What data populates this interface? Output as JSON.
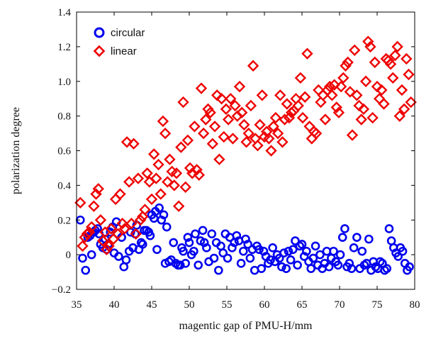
{
  "chart_data": {
    "type": "scatter",
    "title": "",
    "xlabel": "magentic gap of PMU-H/mm",
    "ylabel": "polarization degree",
    "xlim": [
      35,
      80
    ],
    "ylim": [
      -0.2,
      1.4
    ],
    "xticks": [
      35,
      40,
      45,
      50,
      55,
      60,
      65,
      70,
      75,
      80
    ],
    "xtick_labels": [
      "35",
      "40",
      "45",
      "50",
      "55",
      "60",
      "65",
      "70",
      "75",
      "80"
    ],
    "yticks": [
      -0.2,
      0,
      0.2,
      0.4,
      0.6,
      0.8,
      1.0,
      1.2,
      1.4
    ],
    "ytick_labels": [
      "−0.2",
      "0",
      "0.2",
      "0.4",
      "0.6",
      "0.8",
      "1.0",
      "1.2",
      "1.4"
    ],
    "grid": false,
    "legend": {
      "placement": "top-left",
      "entries": [
        "circular",
        "linear"
      ]
    },
    "series": [
      {
        "name": "circular",
        "marker": "circle",
        "color": "#0000ee",
        "points": [
          [
            35.5,
            0.2
          ],
          [
            35.8,
            -0.02
          ],
          [
            36.2,
            -0.09
          ],
          [
            36.5,
            0.1
          ],
          [
            36.8,
            0.11
          ],
          [
            37.0,
            0.0
          ],
          [
            37.3,
            0.13
          ],
          [
            37.5,
            0.14
          ],
          [
            37.8,
            0.15
          ],
          [
            38.0,
            0.12
          ],
          [
            38.2,
            0.06
          ],
          [
            38.5,
            0.04
          ],
          [
            38.8,
            0.09
          ],
          [
            39.0,
            0.03
          ],
          [
            39.2,
            0.06
          ],
          [
            39.5,
            0.13
          ],
          [
            39.8,
            0.16
          ],
          [
            40.0,
            0.01
          ],
          [
            40.3,
            0.19
          ],
          [
            40.6,
            -0.01
          ],
          [
            41.0,
            0.1
          ],
          [
            41.3,
            -0.07
          ],
          [
            41.6,
            -0.03
          ],
          [
            42.0,
            0.02
          ],
          [
            42.2,
            0.13
          ],
          [
            42.5,
            0.04
          ],
          [
            42.8,
            0.12
          ],
          [
            43.0,
            0.17
          ],
          [
            43.3,
            0.03
          ],
          [
            43.6,
            0.07
          ],
          [
            43.8,
            0.06
          ],
          [
            44.0,
            0.14
          ],
          [
            44.3,
            0.14
          ],
          [
            44.6,
            0.13
          ],
          [
            44.8,
            0.11
          ],
          [
            45.0,
            0.23
          ],
          [
            45.3,
            0.21
          ],
          [
            45.5,
            0.25
          ],
          [
            45.7,
            0.03
          ],
          [
            46.0,
            0.27
          ],
          [
            46.3,
            0.2
          ],
          [
            46.6,
            0.23
          ],
          [
            46.8,
            -0.05
          ],
          [
            47.0,
            0.16
          ],
          [
            47.3,
            -0.04
          ],
          [
            47.6,
            -0.03
          ],
          [
            47.9,
            0.07
          ],
          [
            48.2,
            -0.05
          ],
          [
            48.5,
            -0.06
          ],
          [
            48.8,
            -0.06
          ],
          [
            49.0,
            0.04
          ],
          [
            49.2,
            0.02
          ],
          [
            49.5,
            -0.05
          ],
          [
            49.8,
            0.1
          ],
          [
            50.0,
            0.07
          ],
          [
            50.3,
            0.0
          ],
          [
            50.6,
            0.02
          ],
          [
            50.8,
            0.12
          ],
          [
            51.2,
            -0.06
          ],
          [
            51.5,
            0.08
          ],
          [
            51.8,
            0.14
          ],
          [
            52.0,
            0.07
          ],
          [
            52.3,
            0.04
          ],
          [
            52.6,
            -0.04
          ],
          [
            53.0,
            0.12
          ],
          [
            53.3,
            -0.02
          ],
          [
            53.6,
            0.07
          ],
          [
            53.9,
            -0.09
          ],
          [
            54.2,
            0.05
          ],
          [
            54.5,
            0.01
          ],
          [
            54.8,
            0.12
          ],
          [
            55.1,
            -0.02
          ],
          [
            55.4,
            0.1
          ],
          [
            55.7,
            0.04
          ],
          [
            56.0,
            0.07
          ],
          [
            56.3,
            0.11
          ],
          [
            56.6,
            0.08
          ],
          [
            56.9,
            -0.05
          ],
          [
            57.2,
            0.02
          ],
          [
            57.5,
            0.09
          ],
          [
            57.8,
            0.06
          ],
          [
            58.1,
            -0.02
          ],
          [
            58.4,
            0.03
          ],
          [
            58.7,
            -0.09
          ],
          [
            59.0,
            0.05
          ],
          [
            59.3,
            0.03
          ],
          [
            59.6,
            -0.08
          ],
          [
            59.9,
            0.02
          ],
          [
            60.2,
            -0.01
          ],
          [
            60.5,
            -0.05
          ],
          [
            60.8,
            -0.03
          ],
          [
            61.1,
            0.04
          ],
          [
            61.4,
            -0.04
          ],
          [
            61.7,
            0.0
          ],
          [
            62.0,
            -0.02
          ],
          [
            62.3,
            -0.07
          ],
          [
            62.6,
            0.01
          ],
          [
            62.9,
            -0.08
          ],
          [
            63.2,
            0.02
          ],
          [
            63.5,
            -0.03
          ],
          [
            63.8,
            0.03
          ],
          [
            64.1,
            0.08
          ],
          [
            64.4,
            -0.06
          ],
          [
            64.7,
            0.05
          ],
          [
            65.0,
            0.06
          ],
          [
            65.3,
            -0.01
          ],
          [
            65.6,
            0.02
          ],
          [
            65.9,
            -0.04
          ],
          [
            66.2,
            -0.08
          ],
          [
            66.5,
            -0.02
          ],
          [
            66.8,
            0.05
          ],
          [
            67.1,
            -0.06
          ],
          [
            67.4,
            0.0
          ],
          [
            67.7,
            -0.08
          ],
          [
            68.0,
            -0.05
          ],
          [
            68.3,
            0.02
          ],
          [
            68.6,
            -0.07
          ],
          [
            68.9,
            -0.02
          ],
          [
            69.2,
            0.02
          ],
          [
            69.5,
            -0.04
          ],
          [
            69.8,
            -0.06
          ],
          [
            70.1,
            0.0
          ],
          [
            70.4,
            0.1
          ],
          [
            70.7,
            0.15
          ],
          [
            71.0,
            -0.07
          ],
          [
            71.3,
            -0.05
          ],
          [
            71.6,
            -0.08
          ],
          [
            71.9,
            0.04
          ],
          [
            72.3,
            0.1
          ],
          [
            72.7,
            -0.08
          ],
          [
            73.0,
            0.02
          ],
          [
            73.3,
            -0.06
          ],
          [
            73.6,
            -0.05
          ],
          [
            73.9,
            0.09
          ],
          [
            74.2,
            -0.09
          ],
          [
            74.5,
            -0.04
          ],
          [
            74.8,
            -0.07
          ],
          [
            75.1,
            -0.08
          ],
          [
            75.4,
            -0.04
          ],
          [
            75.7,
            -0.05
          ],
          [
            76.0,
            -0.09
          ],
          [
            76.3,
            -0.08
          ],
          [
            76.6,
            0.15
          ],
          [
            76.9,
            0.08
          ],
          [
            77.2,
            0.04
          ],
          [
            77.5,
            0.01
          ],
          [
            77.8,
            -0.01
          ],
          [
            78.1,
            0.04
          ],
          [
            78.4,
            0.02
          ],
          [
            78.7,
            -0.05
          ],
          [
            79.0,
            -0.09
          ],
          [
            79.3,
            -0.07
          ]
        ]
      },
      {
        "name": "linear",
        "marker": "diamond",
        "color": "#ee0000",
        "points": [
          [
            35.5,
            0.3
          ],
          [
            35.8,
            0.05
          ],
          [
            36.1,
            0.1
          ],
          [
            36.4,
            0.12
          ],
          [
            36.7,
            0.13
          ],
          [
            37.0,
            0.16
          ],
          [
            37.3,
            0.28
          ],
          [
            37.6,
            0.35
          ],
          [
            37.9,
            0.38
          ],
          [
            38.2,
            0.2
          ],
          [
            38.5,
            0.08
          ],
          [
            38.8,
            0.13
          ],
          [
            39.0,
            0.03
          ],
          [
            39.3,
            0.05
          ],
          [
            39.6,
            0.15
          ],
          [
            39.9,
            0.09
          ],
          [
            40.2,
            0.32
          ],
          [
            40.5,
            0.12
          ],
          [
            40.8,
            0.35
          ],
          [
            41.1,
            0.18
          ],
          [
            41.4,
            0.15
          ],
          [
            41.7,
            0.65
          ],
          [
            42.0,
            0.42
          ],
          [
            42.3,
            0.18
          ],
          [
            42.6,
            0.64
          ],
          [
            42.9,
            0.12
          ],
          [
            43.2,
            0.44
          ],
          [
            43.5,
            0.2
          ],
          [
            43.8,
            0.22
          ],
          [
            44.1,
            0.26
          ],
          [
            44.4,
            0.47
          ],
          [
            44.7,
            0.42
          ],
          [
            45.0,
            0.32
          ],
          [
            45.3,
            0.58
          ],
          [
            45.6,
            0.44
          ],
          [
            45.9,
            0.52
          ],
          [
            46.2,
            0.35
          ],
          [
            46.5,
            0.77
          ],
          [
            46.8,
            0.7
          ],
          [
            47.1,
            0.42
          ],
          [
            47.4,
            0.55
          ],
          [
            47.7,
            0.48
          ],
          [
            48.0,
            0.4
          ],
          [
            48.3,
            0.47
          ],
          [
            48.6,
            0.28
          ],
          [
            48.9,
            0.62
          ],
          [
            49.2,
            0.88
          ],
          [
            49.5,
            0.39
          ],
          [
            49.8,
            0.66
          ],
          [
            50.1,
            0.5
          ],
          [
            50.4,
            0.47
          ],
          [
            50.7,
            0.74
          ],
          [
            51.0,
            0.49
          ],
          [
            51.3,
            0.46
          ],
          [
            51.6,
            0.96
          ],
          [
            51.9,
            0.7
          ],
          [
            52.2,
            0.78
          ],
          [
            52.5,
            0.84
          ],
          [
            52.8,
            0.82
          ],
          [
            53.1,
            0.64
          ],
          [
            53.4,
            0.74
          ],
          [
            53.7,
            0.92
          ],
          [
            54.0,
            0.55
          ],
          [
            54.3,
            0.9
          ],
          [
            54.6,
            0.68
          ],
          [
            54.9,
            0.84
          ],
          [
            55.2,
            0.78
          ],
          [
            55.5,
            0.9
          ],
          [
            55.8,
            0.67
          ],
          [
            56.1,
            0.86
          ],
          [
            56.4,
            0.8
          ],
          [
            56.7,
            0.97
          ],
          [
            57.0,
            0.82
          ],
          [
            57.3,
            0.75
          ],
          [
            57.6,
            0.65
          ],
          [
            57.9,
            0.7
          ],
          [
            58.2,
            0.86
          ],
          [
            58.5,
            1.09
          ],
          [
            58.8,
            0.67
          ],
          [
            59.1,
            0.63
          ],
          [
            59.4,
            0.75
          ],
          [
            59.7,
            0.92
          ],
          [
            60.0,
            0.68
          ],
          [
            60.3,
            0.71
          ],
          [
            60.6,
            0.67
          ],
          [
            60.9,
            0.6
          ],
          [
            61.2,
            0.74
          ],
          [
            61.5,
            0.79
          ],
          [
            61.8,
            0.7
          ],
          [
            62.1,
            0.92
          ],
          [
            62.4,
            0.65
          ],
          [
            62.7,
            0.78
          ],
          [
            63.0,
            0.87
          ],
          [
            63.3,
            0.79
          ],
          [
            63.6,
            0.82
          ],
          [
            63.9,
            0.83
          ],
          [
            64.2,
            0.9
          ],
          [
            64.5,
            0.86
          ],
          [
            64.8,
            1.02
          ],
          [
            65.1,
            0.79
          ],
          [
            65.4,
            0.91
          ],
          [
            65.7,
            1.16
          ],
          [
            66.0,
            0.74
          ],
          [
            66.3,
            0.67
          ],
          [
            66.6,
            0.71
          ],
          [
            66.9,
            0.7
          ],
          [
            67.2,
            0.95
          ],
          [
            67.5,
            0.88
          ],
          [
            67.8,
            0.92
          ],
          [
            68.1,
            0.78
          ],
          [
            68.4,
            0.95
          ],
          [
            68.7,
            0.97
          ],
          [
            69.0,
            0.92
          ],
          [
            69.3,
            0.98
          ],
          [
            69.6,
            0.85
          ],
          [
            69.9,
            0.82
          ],
          [
            70.2,
            0.97
          ],
          [
            70.5,
            1.02
          ],
          [
            70.8,
            1.09
          ],
          [
            71.1,
            1.11
          ],
          [
            71.4,
            0.94
          ],
          [
            71.7,
            0.69
          ],
          [
            72.0,
            1.18
          ],
          [
            72.3,
            0.92
          ],
          [
            72.6,
            0.86
          ],
          [
            72.9,
            0.78
          ],
          [
            73.2,
            0.84
          ],
          [
            73.5,
            1.0
          ],
          [
            73.8,
            1.23
          ],
          [
            74.1,
            1.2
          ],
          [
            74.4,
            0.79
          ],
          [
            74.7,
            1.11
          ],
          [
            75.0,
            0.97
          ],
          [
            75.3,
            0.9
          ],
          [
            75.6,
            0.95
          ],
          [
            75.9,
            0.87
          ],
          [
            76.2,
            1.13
          ],
          [
            76.5,
            1.12
          ],
          [
            76.8,
            1.1
          ],
          [
            77.1,
            1.02
          ],
          [
            77.4,
            1.15
          ],
          [
            77.7,
            1.2
          ],
          [
            78.0,
            0.8
          ],
          [
            78.3,
            0.95
          ],
          [
            78.6,
            0.84
          ],
          [
            78.9,
            1.13
          ],
          [
            79.2,
            1.04
          ],
          [
            79.5,
            0.88
          ]
        ]
      }
    ]
  }
}
